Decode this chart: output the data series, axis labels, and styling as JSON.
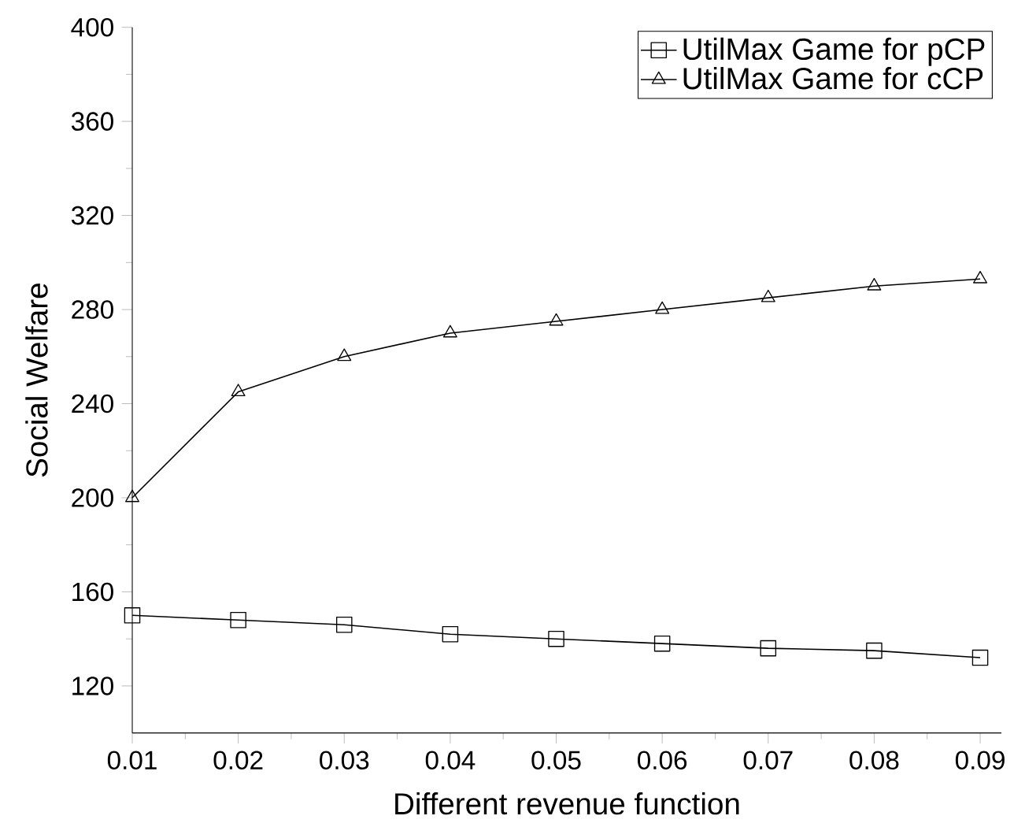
{
  "chart_data": {
    "type": "line",
    "xlabel": "Different revenue function",
    "ylabel": "Social Welfare",
    "x": [
      0.01,
      0.02,
      0.03,
      0.04,
      0.05,
      0.06,
      0.07,
      0.08,
      0.09
    ],
    "series": [
      {
        "name": "UtilMax Game for pCP",
        "color": "#000000",
        "marker": "square",
        "values": [
          150,
          148,
          146,
          142,
          140,
          138,
          136,
          135,
          132
        ]
      },
      {
        "name": "UtilMax Game for cCP",
        "color": "#000000",
        "marker": "triangle",
        "values": [
          200,
          245,
          260,
          270,
          275,
          280,
          285,
          290,
          293
        ]
      }
    ],
    "xlim": [
      0.01,
      0.092
    ],
    "xticks": [
      0.01,
      0.02,
      0.03,
      0.04,
      0.05,
      0.06,
      0.07,
      0.08,
      0.09
    ],
    "ylim": [
      100,
      400
    ],
    "yticks": [
      120,
      160,
      200,
      240,
      280,
      320,
      360,
      400
    ],
    "grid": false,
    "legend": "top right",
    "line_style": "solid"
  }
}
